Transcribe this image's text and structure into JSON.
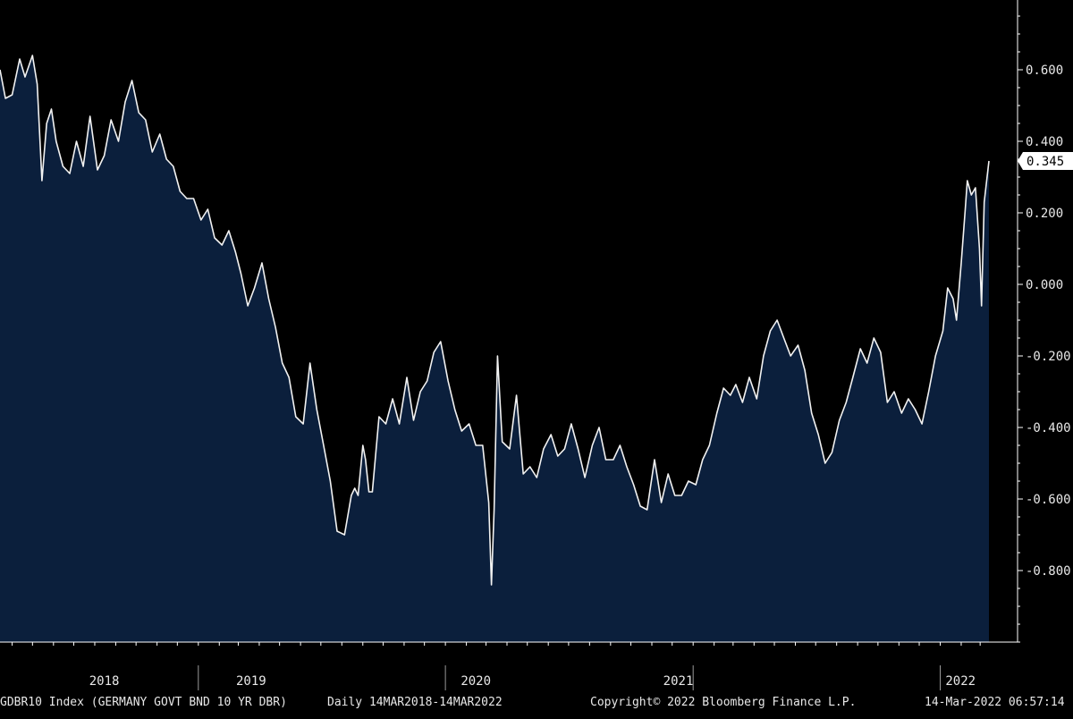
{
  "chart_data": {
    "type": "area",
    "x_unit": "date",
    "x_range": [
      "2018-03-14",
      "2022-03-14"
    ],
    "ylim": [
      -1.0,
      0.75
    ],
    "y_ticks": [
      0.6,
      0.4,
      0.2,
      0.0,
      -0.2,
      -0.4,
      -0.6,
      -0.8
    ],
    "y_tick_labels": [
      "0.600",
      "0.400",
      "0.200",
      "0.000",
      "-0.200",
      "-0.400",
      "-0.600",
      "-0.800"
    ],
    "x_tick_labels": [
      "2018",
      "2019",
      "2020",
      "2021",
      "2022"
    ],
    "x_tick_positions": [
      "2018-08-15",
      "2019-03-20",
      "2020-02-15",
      "2020-12-10",
      "2022-01-31"
    ],
    "x_separators": [
      "2019-01-01",
      "2020-01-01",
      "2021-01-01",
      "2022-01-01"
    ],
    "last_value_label": "0.345",
    "last_value": 0.345,
    "series": [
      {
        "x": [
          "2018-03-14",
          "2018-03-22",
          "2018-04-01",
          "2018-04-12",
          "2018-04-20",
          "2018-05-01",
          "2018-05-08",
          "2018-05-15",
          "2018-05-22",
          "2018-05-29",
          "2018-06-05",
          "2018-06-15",
          "2018-06-25",
          "2018-07-05",
          "2018-07-15",
          "2018-07-25",
          "2018-08-05",
          "2018-08-15",
          "2018-08-25",
          "2018-09-05",
          "2018-09-15",
          "2018-09-25",
          "2018-10-05",
          "2018-10-15",
          "2018-10-25",
          "2018-11-05",
          "2018-11-15",
          "2018-11-25",
          "2018-12-05",
          "2018-12-15",
          "2018-12-25",
          "2019-01-05",
          "2019-01-15",
          "2019-01-25",
          "2019-02-05",
          "2019-02-15",
          "2019-02-25",
          "2019-03-05",
          "2019-03-15",
          "2019-03-25",
          "2019-04-05",
          "2019-04-15",
          "2019-04-25",
          "2019-05-05",
          "2019-05-15",
          "2019-05-25",
          "2019-06-05",
          "2019-06-15",
          "2019-06-25",
          "2019-07-05",
          "2019-07-15",
          "2019-07-25",
          "2019-08-05",
          "2019-08-15",
          "2019-08-20",
          "2019-08-25",
          "2019-09-01",
          "2019-09-05",
          "2019-09-10",
          "2019-09-15",
          "2019-09-25",
          "2019-10-05",
          "2019-10-15",
          "2019-10-25",
          "2019-11-05",
          "2019-11-15",
          "2019-11-25",
          "2019-12-05",
          "2019-12-15",
          "2019-12-25",
          "2020-01-05",
          "2020-01-15",
          "2020-01-25",
          "2020-02-05",
          "2020-02-15",
          "2020-02-25",
          "2020-03-05",
          "2020-03-09",
          "2020-03-13",
          "2020-03-18",
          "2020-03-25",
          "2020-04-05",
          "2020-04-15",
          "2020-04-25",
          "2020-05-05",
          "2020-05-15",
          "2020-05-25",
          "2020-06-05",
          "2020-06-15",
          "2020-06-25",
          "2020-07-05",
          "2020-07-15",
          "2020-07-25",
          "2020-08-05",
          "2020-08-15",
          "2020-08-25",
          "2020-09-05",
          "2020-09-15",
          "2020-09-25",
          "2020-10-05",
          "2020-10-15",
          "2020-10-25",
          "2020-11-05",
          "2020-11-15",
          "2020-11-25",
          "2020-12-05",
          "2020-12-15",
          "2020-12-25",
          "2021-01-05",
          "2021-01-15",
          "2021-01-25",
          "2021-02-05",
          "2021-02-15",
          "2021-02-25",
          "2021-03-05",
          "2021-03-15",
          "2021-03-25",
          "2021-04-05",
          "2021-04-15",
          "2021-04-25",
          "2021-05-05",
          "2021-05-15",
          "2021-05-25",
          "2021-06-05",
          "2021-06-15",
          "2021-06-25",
          "2021-07-05",
          "2021-07-15",
          "2021-07-25",
          "2021-08-05",
          "2021-08-15",
          "2021-08-25",
          "2021-09-05",
          "2021-09-15",
          "2021-09-25",
          "2021-10-05",
          "2021-10-15",
          "2021-10-25",
          "2021-11-05",
          "2021-11-15",
          "2021-11-25",
          "2021-12-05",
          "2021-12-15",
          "2021-12-25",
          "2022-01-05",
          "2022-01-12",
          "2022-01-20",
          "2022-01-25",
          "2022-02-01",
          "2022-02-07",
          "2022-02-10",
          "2022-02-16",
          "2022-02-22",
          "2022-02-28",
          "2022-03-03",
          "2022-03-07",
          "2022-03-10",
          "2022-03-14"
        ],
        "y": [
          0.6,
          0.52,
          0.53,
          0.63,
          0.58,
          0.64,
          0.56,
          0.29,
          0.45,
          0.49,
          0.4,
          0.33,
          0.31,
          0.4,
          0.33,
          0.47,
          0.32,
          0.36,
          0.46,
          0.4,
          0.51,
          0.57,
          0.48,
          0.46,
          0.37,
          0.42,
          0.35,
          0.33,
          0.26,
          0.24,
          0.24,
          0.18,
          0.21,
          0.13,
          0.11,
          0.15,
          0.09,
          0.03,
          -0.06,
          -0.01,
          0.06,
          -0.04,
          -0.12,
          -0.22,
          -0.26,
          -0.37,
          -0.39,
          -0.22,
          -0.35,
          -0.45,
          -0.55,
          -0.69,
          -0.7,
          -0.59,
          -0.57,
          -0.59,
          -0.45,
          -0.49,
          -0.58,
          -0.58,
          -0.37,
          -0.39,
          -0.32,
          -0.39,
          -0.26,
          -0.38,
          -0.3,
          -0.27,
          -0.19,
          -0.16,
          -0.27,
          -0.35,
          -0.41,
          -0.39,
          -0.45,
          -0.45,
          -0.61,
          -0.84,
          -0.63,
          -0.2,
          -0.44,
          -0.46,
          -0.31,
          -0.53,
          -0.51,
          -0.54,
          -0.46,
          -0.42,
          -0.48,
          -0.46,
          -0.39,
          -0.46,
          -0.54,
          -0.45,
          -0.4,
          -0.49,
          -0.49,
          -0.45,
          -0.51,
          -0.56,
          -0.62,
          -0.63,
          -0.49,
          -0.61,
          -0.53,
          -0.59,
          -0.59,
          -0.55,
          -0.56,
          -0.49,
          -0.45,
          -0.36,
          -0.29,
          -0.31,
          -0.28,
          -0.33,
          -0.26,
          -0.32,
          -0.2,
          -0.13,
          -0.1,
          -0.15,
          -0.2,
          -0.17,
          -0.24,
          -0.36,
          -0.42,
          -0.5,
          -0.47,
          -0.38,
          -0.33,
          -0.26,
          -0.18,
          -0.22,
          -0.15,
          -0.19,
          -0.33,
          -0.3,
          -0.36,
          -0.32,
          -0.35,
          -0.39,
          -0.3,
          -0.2,
          -0.13,
          -0.01,
          -0.04,
          -0.1,
          0.06,
          0.21,
          0.29,
          0.25,
          0.27,
          0.1,
          -0.06,
          0.23,
          0.28,
          0.345
        ]
      }
    ],
    "colors": {
      "background": "#000000",
      "area_fill": "#0b1f3c",
      "line": "#f2f2f2",
      "text": "#e8e8e8",
      "axis": "#ffffff"
    }
  },
  "footer": {
    "security": "GDBR10 Index (GERMANY GOVT BND 10 YR DBR)",
    "range": "Daily 14MAR2018-14MAR2022",
    "copyright": "Copyright© 2022 Bloomberg Finance L.P.",
    "timestamp": "14-Mar-2022 06:57:14"
  }
}
